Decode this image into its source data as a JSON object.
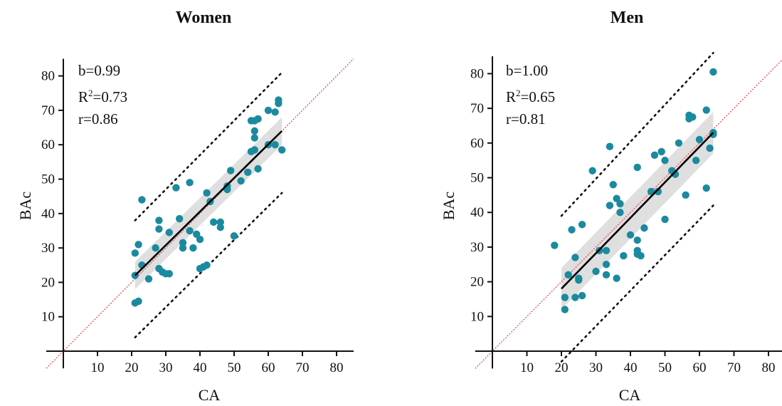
{
  "chart_data": [
    {
      "type": "scatter",
      "title": "Women",
      "xlabel": "CA",
      "ylabel": "BAc",
      "xlim": [
        -5,
        85
      ],
      "ylim": [
        -5,
        85
      ],
      "x_ticks": [
        10,
        20,
        30,
        40,
        50,
        60,
        70,
        80
      ],
      "y_ticks": [
        10,
        20,
        30,
        40,
        50,
        60,
        70,
        80
      ],
      "stats": {
        "b": "b=0.99",
        "r2_prefix": "R",
        "r2_sup": "2",
        "r2_value": "=0.73",
        "r": "r=0.86"
      },
      "fit": {
        "x": [
          21,
          64
        ],
        "y": [
          22,
          64
        ]
      },
      "ci_band": {
        "x": [
          21,
          64
        ],
        "lower": [
          18,
          60
        ],
        "upper": [
          26,
          68
        ]
      },
      "prediction_upper": {
        "x": [
          21,
          64
        ],
        "y": [
          38,
          81
        ]
      },
      "prediction_lower": {
        "x": [
          21,
          64
        ],
        "y": [
          4,
          46
        ]
      },
      "identity_line": {
        "x": [
          -5,
          85
        ],
        "y": [
          -5,
          85
        ]
      },
      "colors": {
        "points": "#1b8a9f",
        "fit": "#000000",
        "identity": "#e05050",
        "band": "#d9d9d9"
      },
      "points": {
        "x": [
          21,
          21,
          22,
          23,
          21,
          22,
          23,
          25,
          27,
          28,
          28,
          29,
          30,
          31,
          28,
          31,
          33,
          34,
          35,
          35,
          37,
          37,
          38,
          39,
          40,
          40,
          41,
          42,
          42,
          43,
          44,
          46,
          46,
          48,
          48,
          49,
          50,
          52,
          54,
          55,
          56,
          57,
          56,
          57,
          56,
          56,
          55,
          60,
          60,
          62,
          62,
          63,
          63,
          64
        ],
        "y": [
          14,
          22,
          31,
          44,
          28.5,
          14.5,
          25,
          21,
          30,
          38,
          35.5,
          23,
          22.5,
          22.5,
          24,
          34.5,
          47.5,
          38.5,
          30,
          31.5,
          49,
          35,
          30,
          34,
          32.5,
          24,
          24.5,
          46,
          25,
          43.5,
          37.5,
          36,
          37.5,
          47,
          48,
          52.5,
          33.5,
          49.5,
          52,
          67,
          58.5,
          53,
          62,
          67.5,
          64,
          67,
          58,
          70,
          60,
          60,
          69.5,
          73,
          72,
          58.5
        ]
      }
    },
    {
      "type": "scatter",
      "title": "Men",
      "xlabel": "CA",
      "ylabel": "BAc",
      "xlim": [
        -5,
        85
      ],
      "ylim": [
        -5,
        85
      ],
      "x_ticks": [
        10,
        20,
        30,
        40,
        50,
        60,
        70,
        80
      ],
      "y_ticks": [
        10,
        20,
        30,
        40,
        50,
        60,
        70,
        80
      ],
      "stats": {
        "b": "b=1.00",
        "r2_prefix": "R",
        "r2_sup": "2",
        "r2_value": "=0.65",
        "r": "r=0.81"
      },
      "fit": {
        "x": [
          20,
          64
        ],
        "y": [
          18,
          63
        ]
      },
      "ci_band": {
        "x": [
          20,
          64
        ],
        "lower": [
          12,
          57
        ],
        "upper": [
          24,
          69
        ]
      },
      "prediction_upper": {
        "x": [
          20,
          64
        ],
        "y": [
          39,
          86
        ]
      },
      "prediction_lower": {
        "x": [
          20,
          64
        ],
        "y": [
          -3,
          42
        ]
      },
      "identity_line": {
        "x": [
          -5,
          85
        ],
        "y": [
          -5,
          85
        ]
      },
      "colors": {
        "points": "#1b8a9f",
        "fit": "#000000",
        "identity": "#e05050",
        "band": "#d9d9d9"
      },
      "points": {
        "x": [
          18,
          21,
          21,
          22,
          23,
          24,
          24,
          25,
          25,
          26,
          26,
          29,
          30,
          31,
          33,
          33,
          33,
          34,
          34,
          35,
          36,
          36,
          37,
          37,
          38,
          40,
          42,
          42,
          42,
          43,
          42,
          44,
          46,
          47,
          48,
          49,
          50,
          50,
          52,
          53,
          54,
          56,
          57,
          57,
          58,
          59,
          60,
          62,
          62,
          63,
          64,
          64,
          64
        ],
        "y": [
          30.5,
          15.5,
          12,
          22,
          35,
          27,
          15.5,
          21,
          20.5,
          36.5,
          16,
          52,
          23,
          29,
          29,
          25,
          22,
          59,
          42,
          48,
          44,
          21,
          40,
          42.5,
          27.5,
          33.5,
          53,
          29,
          28,
          27.5,
          32,
          35.5,
          46,
          56.5,
          46,
          57.5,
          55,
          38,
          52,
          51,
          60,
          45,
          67,
          68,
          67.5,
          55,
          61,
          47,
          69.5,
          58.5,
          63,
          62.5,
          80.5
        ]
      }
    }
  ]
}
